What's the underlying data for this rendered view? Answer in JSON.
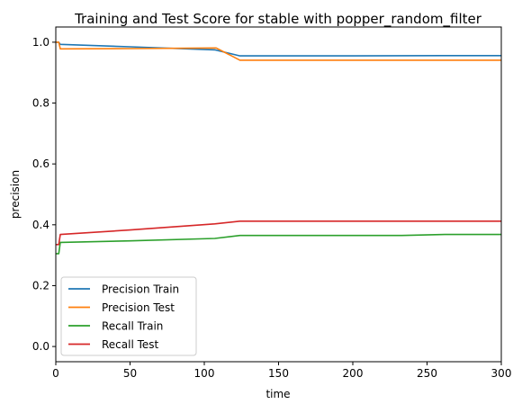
{
  "chart_data": {
    "type": "line",
    "title": "Training and Test Score for stable with popper_random_filter",
    "xlabel": "time",
    "ylabel": "precision",
    "xlim": [
      0,
      300
    ],
    "ylim": [
      -0.05,
      1.05
    ],
    "xticks": [
      0,
      50,
      100,
      150,
      200,
      250,
      300
    ],
    "yticks": [
      0.0,
      0.2,
      0.4,
      0.6,
      0.8,
      1.0
    ],
    "xtick_labels": [
      "0",
      "50",
      "100",
      "150",
      "200",
      "250",
      "300"
    ],
    "ytick_labels": [
      "0.0",
      "0.2",
      "0.4",
      "0.6",
      "0.8",
      "1.0"
    ],
    "grid": false,
    "legend_position": "lower-left",
    "series": [
      {
        "name": "Precision Train",
        "color": "#1f77b4",
        "points": [
          [
            0,
            1.0
          ],
          [
            2,
            1.0
          ],
          [
            3,
            0.993
          ],
          [
            50,
            0.985
          ],
          [
            107,
            0.975
          ],
          [
            124,
            0.955
          ],
          [
            200,
            0.955
          ],
          [
            260,
            0.956
          ],
          [
            300,
            0.956
          ]
        ]
      },
      {
        "name": "Precision Test",
        "color": "#ff7f0e",
        "points": [
          [
            0,
            1.0
          ],
          [
            2,
            1.0
          ],
          [
            3,
            0.978
          ],
          [
            50,
            0.979
          ],
          [
            108,
            0.981
          ],
          [
            124,
            0.941
          ],
          [
            200,
            0.941
          ],
          [
            300,
            0.941
          ]
        ]
      },
      {
        "name": "Recall Train",
        "color": "#2ca02c",
        "points": [
          [
            0,
            0.305
          ],
          [
            2,
            0.305
          ],
          [
            3,
            0.342
          ],
          [
            50,
            0.347
          ],
          [
            107,
            0.355
          ],
          [
            124,
            0.365
          ],
          [
            233,
            0.365
          ],
          [
            262,
            0.368
          ],
          [
            300,
            0.368
          ]
        ]
      },
      {
        "name": "Recall Test",
        "color": "#d62728",
        "points": [
          [
            0,
            0.335
          ],
          [
            2,
            0.335
          ],
          [
            3,
            0.368
          ],
          [
            50,
            0.383
          ],
          [
            107,
            0.403
          ],
          [
            124,
            0.412
          ],
          [
            200,
            0.412
          ],
          [
            300,
            0.412
          ]
        ]
      }
    ]
  }
}
